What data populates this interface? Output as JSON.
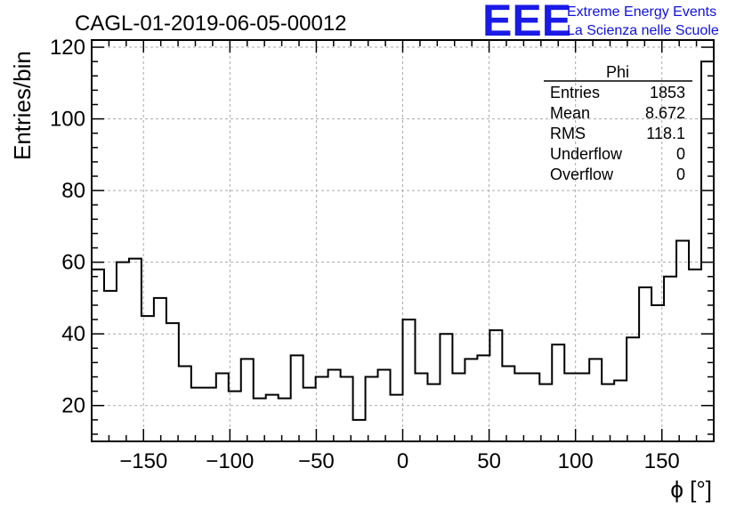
{
  "title": "CAGL-01-2019-06-05-00012",
  "logo": {
    "mark": "EEE",
    "line1": "Extreme Energy Events",
    "line2": "La Scienza nelle Scuole",
    "color": "#1a1ae6"
  },
  "stats": {
    "name": "Phi",
    "rows": [
      {
        "label": "Entries",
        "value": "1853"
      },
      {
        "label": "Mean",
        "value": "8.672"
      },
      {
        "label": "RMS",
        "value": "118.1"
      },
      {
        "label": "Underflow",
        "value": "0"
      },
      {
        "label": "Overflow",
        "value": "0"
      }
    ]
  },
  "chart_data": {
    "type": "bar",
    "style": "step histogram",
    "xlabel": "ϕ [°]",
    "ylabel": "Entries/bin",
    "xlim": [
      -180,
      180
    ],
    "ylim": [
      10,
      122
    ],
    "bin_width": 7.2,
    "xticks": [
      -150,
      -100,
      -50,
      0,
      50,
      100,
      150
    ],
    "yticks": [
      20,
      40,
      60,
      80,
      100,
      120
    ],
    "grid": true,
    "values": [
      58,
      52,
      60,
      61,
      45,
      50,
      43,
      31,
      25,
      25,
      29,
      24,
      33,
      22,
      23,
      22,
      34,
      25,
      28,
      30,
      28,
      16,
      28,
      30,
      23,
      44,
      29,
      26,
      40,
      29,
      33,
      34,
      41,
      31,
      29,
      29,
      26,
      37,
      29,
      29,
      33,
      26,
      27,
      39,
      53,
      48,
      56,
      66,
      58,
      116
    ]
  }
}
